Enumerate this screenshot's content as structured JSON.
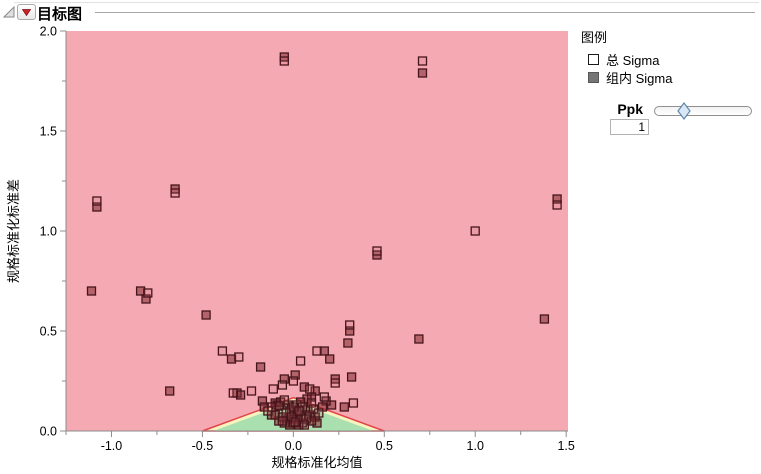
{
  "header": {
    "title": "目标图",
    "menu_button": "red-triangle-menu",
    "disclosure": "expanded"
  },
  "legend": {
    "title": "图例",
    "items": [
      {
        "label": "总 Sigma",
        "marker": "open-square"
      },
      {
        "label": "组内 Sigma",
        "marker": "filled-square"
      }
    ]
  },
  "ppk_control": {
    "label": "Ppk",
    "value": "1",
    "slider_position": 0.3
  },
  "chart_data": {
    "type": "scatter",
    "title": "目标图",
    "xlabel": "规格标准化均值",
    "ylabel": "规格标准化标准差",
    "xlim": [
      -1.25,
      1.51
    ],
    "ylim": [
      0,
      2.0
    ],
    "x_ticks": {
      "major": [
        -1.0,
        -0.5,
        0.0,
        0.5,
        1.0,
        1.5
      ],
      "labels": [
        "-1.0",
        "-0.5",
        "0.0",
        "0.5",
        "1.0",
        "1.5"
      ],
      "minor": [
        -1.25,
        -0.75,
        -0.25,
        0.25,
        0.75,
        1.25
      ]
    },
    "y_ticks": {
      "major": [
        0.0,
        0.5,
        1.0,
        1.5,
        2.0
      ],
      "labels": [
        "0.0",
        "0.5",
        "1.0",
        "1.5",
        "2.0"
      ],
      "minor": [
        0.25,
        0.75,
        1.25,
        1.75
      ]
    },
    "grid": false,
    "legend_position": "right",
    "zones": {
      "background_fill": "#f5a9b2",
      "goal_triangle": {
        "vertices": [
          [
            -0.5,
            0
          ],
          [
            0,
            0.1667
          ],
          [
            0.5,
            0
          ]
        ],
        "fill": "#f6f3be",
        "stroke": "#e2434a"
      },
      "inner_triangle": {
        "vertices": [
          [
            -0.44,
            0
          ],
          [
            0,
            0.1467
          ],
          [
            0.44,
            0
          ]
        ],
        "fill": "#aadfb0"
      }
    },
    "marker_style": {
      "size": 8,
      "stroke": "#46151b",
      "open_fill": "rgba(190,95,102,0.18)",
      "filled_fill": "rgba(125,42,50,0.55)"
    },
    "axis_color": "#8c8c8c",
    "series": [
      {
        "name": "总 Sigma",
        "marker": "open-square",
        "points": [
          [
            -0.05,
            1.85
          ],
          [
            0.71,
            1.85
          ],
          [
            -1.08,
            1.15
          ],
          [
            -0.65,
            1.19
          ],
          [
            1.45,
            1.13
          ],
          [
            1.0,
            1.0
          ],
          [
            0.46,
            0.9
          ],
          [
            -0.8,
            0.69
          ],
          [
            0.31,
            0.53
          ],
          [
            -0.39,
            0.4
          ],
          [
            0.13,
            0.4
          ],
          [
            -0.3,
            0.37
          ],
          [
            0.04,
            0.35
          ],
          [
            0.23,
            0.24
          ],
          [
            0.0,
            0.25
          ],
          [
            -0.33,
            0.19
          ],
          [
            -0.23,
            0.2
          ],
          [
            -0.11,
            0.21
          ],
          [
            -0.06,
            0.23
          ],
          [
            0.09,
            0.21
          ],
          [
            0.17,
            0.17
          ],
          [
            0.33,
            0.14
          ],
          [
            -0.05,
            0.155
          ],
          [
            0.02,
            0.13
          ],
          [
            -0.02,
            0.1
          ],
          [
            0.05,
            0.12
          ],
          [
            -0.08,
            0.125
          ],
          [
            0.1,
            0.14
          ],
          [
            -0.12,
            0.12
          ],
          [
            0.0,
            0.12
          ],
          [
            0.03,
            0.1
          ],
          [
            -0.04,
            0.09
          ],
          [
            0.07,
            0.06
          ],
          [
            -0.01,
            0.07
          ],
          [
            0.11,
            0.11
          ],
          [
            -0.14,
            0.1
          ],
          [
            0.14,
            0.09
          ],
          [
            0.01,
            0.045
          ],
          [
            -0.06,
            0.05
          ],
          [
            0.06,
            0.03
          ]
        ]
      },
      {
        "name": "组内 Sigma",
        "marker": "filled-square",
        "points": [
          [
            -0.05,
            1.87
          ],
          [
            0.71,
            1.79
          ],
          [
            -1.08,
            1.12
          ],
          [
            -0.65,
            1.21
          ],
          [
            1.45,
            1.16
          ],
          [
            0.46,
            0.88
          ],
          [
            -1.11,
            0.7
          ],
          [
            -0.84,
            0.7
          ],
          [
            -0.81,
            0.66
          ],
          [
            -0.48,
            0.58
          ],
          [
            1.38,
            0.56
          ],
          [
            0.31,
            0.5
          ],
          [
            0.69,
            0.46
          ],
          [
            0.3,
            0.44
          ],
          [
            0.17,
            0.4
          ],
          [
            -0.34,
            0.36
          ],
          [
            0.2,
            0.36
          ],
          [
            -0.18,
            0.32
          ],
          [
            0.32,
            0.27
          ],
          [
            0.01,
            0.28
          ],
          [
            -0.05,
            0.26
          ],
          [
            0.23,
            0.26
          ],
          [
            -0.68,
            0.2
          ],
          [
            -0.31,
            0.19
          ],
          [
            -0.29,
            0.18
          ],
          [
            0.06,
            0.22
          ],
          [
            0.12,
            0.2
          ],
          [
            0.1,
            0.17
          ],
          [
            -0.17,
            0.15
          ],
          [
            0.075,
            0.16
          ],
          [
            0.21,
            0.13
          ],
          [
            0.28,
            0.12
          ],
          [
            -0.1,
            0.14
          ],
          [
            0.18,
            0.15
          ],
          [
            -0.16,
            0.12
          ],
          [
            0.16,
            0.12
          ],
          [
            -0.09,
            0.13
          ],
          [
            0.04,
            0.145
          ],
          [
            -0.07,
            0.145
          ],
          [
            0.0,
            0.08
          ],
          [
            -0.03,
            0.06
          ],
          [
            0.02,
            0.06
          ],
          [
            -0.05,
            0.04
          ],
          [
            0.05,
            0.04
          ],
          [
            0.08,
            0.11
          ],
          [
            -0.08,
            0.05
          ],
          [
            0.09,
            0.08
          ],
          [
            -0.02,
            0.03
          ],
          [
            0.12,
            0.07
          ],
          [
            0.0,
            0.04
          ],
          [
            -0.12,
            0.08
          ],
          [
            -0.1,
            0.08
          ],
          [
            0.13,
            0.04
          ],
          [
            0.03,
            0.03
          ],
          [
            -0.03,
            0.13
          ],
          [
            0.1,
            0.05
          ],
          [
            -0.06,
            0.07
          ],
          [
            0.04,
            0.07
          ],
          [
            -0.01,
            0.11
          ],
          [
            0.02,
            0.095
          ]
        ]
      }
    ]
  }
}
